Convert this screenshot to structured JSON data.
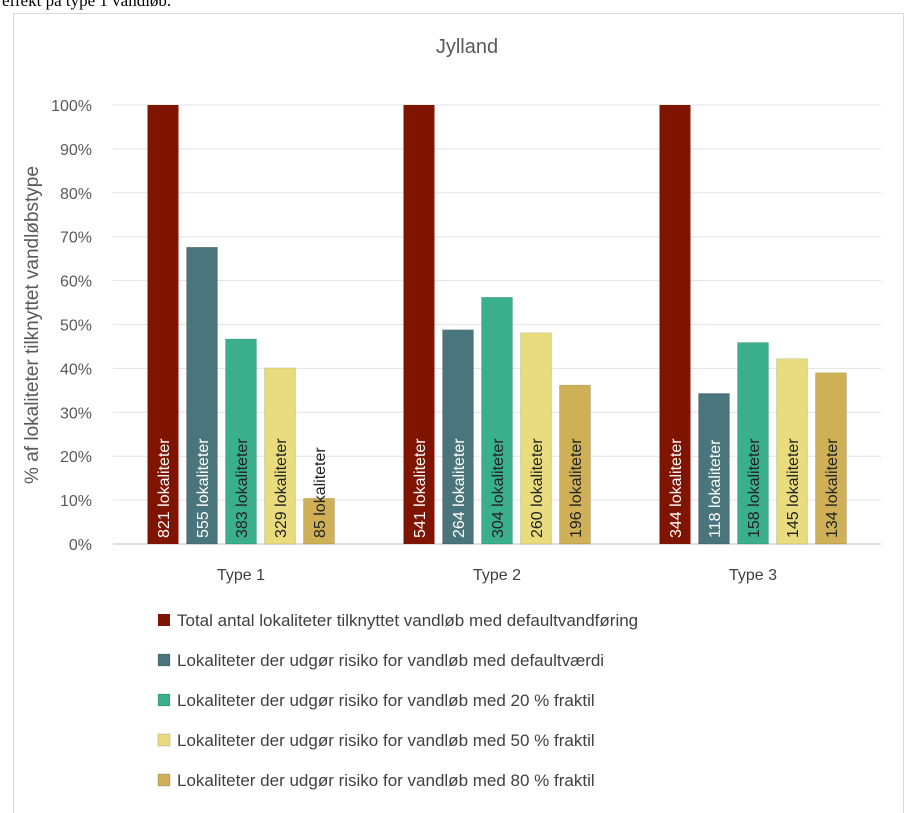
{
  "caption": "effekt på type 1 vandløb.",
  "chart_data": {
    "type": "bar",
    "title": "Jylland",
    "xlabel": "",
    "ylabel": "% af lokaliteter tilknyttet vandløbstype",
    "ylim": [
      0,
      100
    ],
    "yticks": [
      "0%",
      "10%",
      "20%",
      "30%",
      "40%",
      "50%",
      "60%",
      "70%",
      "80%",
      "90%",
      "100%"
    ],
    "grid": true,
    "legend_position": "bottom",
    "categories": [
      "Type 1",
      "Type 2",
      "Type 3"
    ],
    "series": [
      {
        "name": "Total antal lokaliteter tilknyttet vandløb med defaultvandføring",
        "color": "#7f1400",
        "values": [
          100,
          100,
          100
        ],
        "labels": [
          "821 lokaliteter",
          "541 lokaliteter",
          "344 lokaliteter"
        ]
      },
      {
        "name": "Lokaliteter der udgør risiko for vandløb med defaultværdi",
        "color": "#4b757c",
        "values": [
          67.6,
          48.8,
          34.3
        ],
        "labels": [
          "555 lokaliteter",
          "264 lokaliteter",
          "118 lokaliteter"
        ]
      },
      {
        "name": "Lokaliteter der udgør risiko for vandløb med 20 % fraktil",
        "color": "#3aaf8c",
        "values": [
          46.7,
          56.2,
          45.9
        ],
        "labels": [
          "383 lokaliteter",
          "304 lokaliteter",
          "158 lokaliteter"
        ]
      },
      {
        "name": "Lokaliteter der udgør risiko for vandløb med 50 % fraktil",
        "color": "#e9dc7f",
        "values": [
          40.1,
          48.1,
          42.2
        ],
        "labels": [
          "329 lokaliteter",
          "260 lokaliteter",
          "145 lokaliteter"
        ]
      },
      {
        "name": "Lokaliteter der udgør risiko for vandløb med 80 % fraktil",
        "color": "#cfb056",
        "values": [
          10.4,
          36.2,
          39.0
        ],
        "labels": [
          "85 lokaliteter",
          "196 lokaliteter",
          "134 lokaliteter"
        ]
      }
    ]
  }
}
